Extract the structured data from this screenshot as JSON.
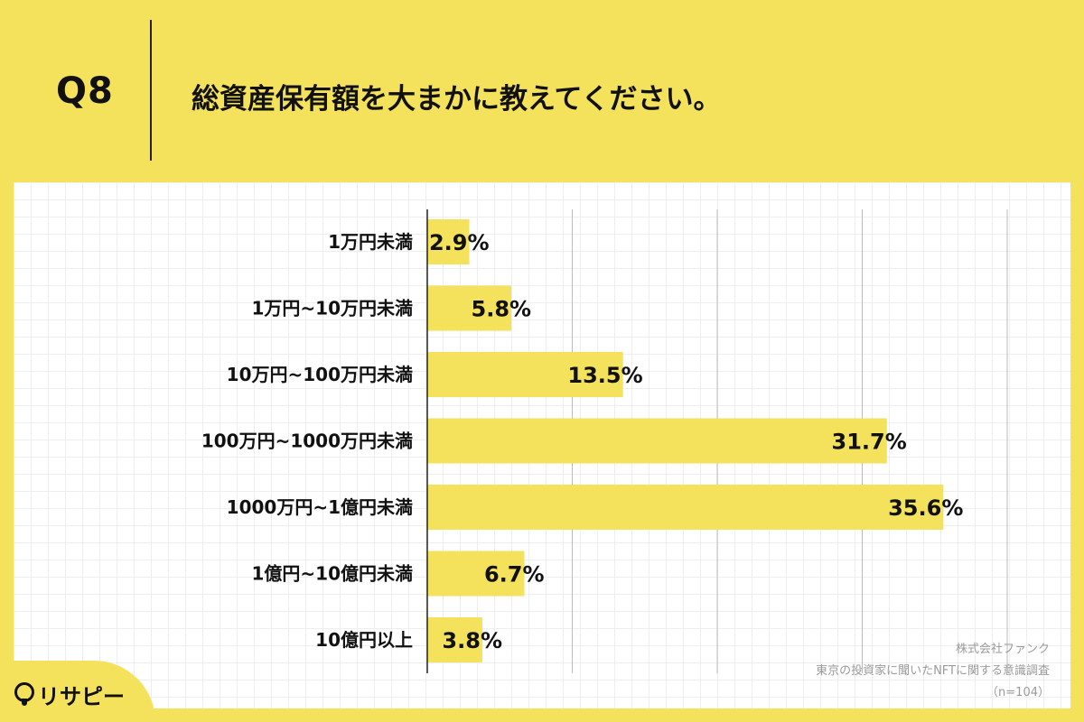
{
  "header": {
    "question_number": "Q8",
    "question_title": "総資産保有額を大まかに教えてください。"
  },
  "colors": {
    "background": "#F5E25C",
    "bar": "#F5E25C",
    "panel": "#FFFFFF",
    "gridline": "#BBBBBB",
    "axis": "#222222"
  },
  "chart_data": {
    "type": "bar",
    "orientation": "horizontal",
    "categories": [
      "1万円未満",
      "1万円~10万円未満",
      "10万円~100万円未満",
      "100万円~1000万円未満",
      "1000万円~1億円未満",
      "1億円~10億円未満",
      "10億円以上"
    ],
    "values": [
      2.9,
      5.8,
      13.5,
      31.7,
      35.6,
      6.7,
      3.8
    ],
    "value_labels": [
      "2.9%",
      "5.8%",
      "13.5%",
      "31.7%",
      "35.6%",
      "6.7%",
      "3.8%"
    ],
    "xlim": [
      0,
      40
    ],
    "gridline_values": [
      10,
      20,
      30,
      40
    ],
    "grid": true,
    "legend": "none"
  },
  "source": {
    "company": "株式会社ファンク",
    "survey": "東京の投資家に聞いたNFTに関する意識調査",
    "sample": "（n=104）"
  },
  "logo": {
    "text": "リサピー"
  }
}
